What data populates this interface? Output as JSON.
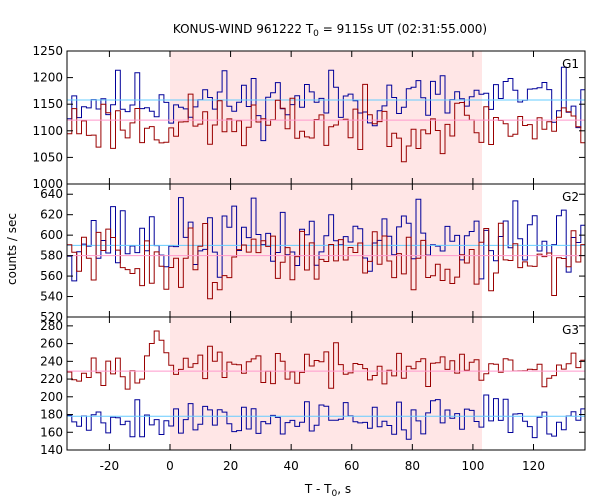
{
  "chart_data": {
    "type": "line",
    "title": "KONUS-WIND 961222 T",
    "title_sub": "0",
    "title_rest": " = 9115s UT (02:31:55.000)",
    "xlabel": "T - T",
    "xlabel_sub": "0",
    "xlabel_rest": ", s",
    "ylabel": "counts / sec",
    "xlim": [
      -34,
      137
    ],
    "xticks": [
      -20,
      0,
      20,
      40,
      60,
      80,
      100,
      120
    ],
    "shaded_interval": [
      0,
      103
    ],
    "grid": false,
    "bin_width_s": 1.6,
    "panels": [
      {
        "label": "G1",
        "ylim": [
          1000,
          1250
        ],
        "yticks": [
          1000,
          1050,
          1100,
          1150,
          1200,
          1250
        ],
        "series": [
          {
            "color": "#000099",
            "seed": 11,
            "mean": 1158,
            "amp": 62,
            "bg": 1158,
            "bg_color": "#66ccff"
          },
          {
            "color": "#990000",
            "seed": 23,
            "mean": 1112,
            "amp": 60,
            "bg": 1120,
            "bg_color": "#ff99cc"
          }
        ]
      },
      {
        "label": "G2",
        "ylim": [
          520,
          650
        ],
        "yticks": [
          520,
          540,
          560,
          580,
          600,
          620,
          640
        ],
        "series": [
          {
            "color": "#000099",
            "seed": 37,
            "mean": 596,
            "amp": 40,
            "bg": 590,
            "bg_color": "#66ccff"
          },
          {
            "color": "#990000",
            "seed": 51,
            "mean": 577,
            "amp": 38,
            "bg": 580,
            "bg_color": "#ff99cc"
          }
        ]
      },
      {
        "label": "G3",
        "ylim": [
          140,
          290
        ],
        "yticks": [
          140,
          160,
          180,
          200,
          220,
          240,
          260,
          280
        ],
        "series": [
          {
            "color": "#990000",
            "seed": 67,
            "mean": 232,
            "amp": 24,
            "bg": 229,
            "bg_color": "#ff99cc",
            "spike": {
              "x": -5,
              "width": 5,
              "peak": 276
            }
          },
          {
            "color": "#000099",
            "seed": 79,
            "mean": 176,
            "amp": 26,
            "bg": 178,
            "bg_color": "#66ccff"
          }
        ]
      }
    ]
  }
}
